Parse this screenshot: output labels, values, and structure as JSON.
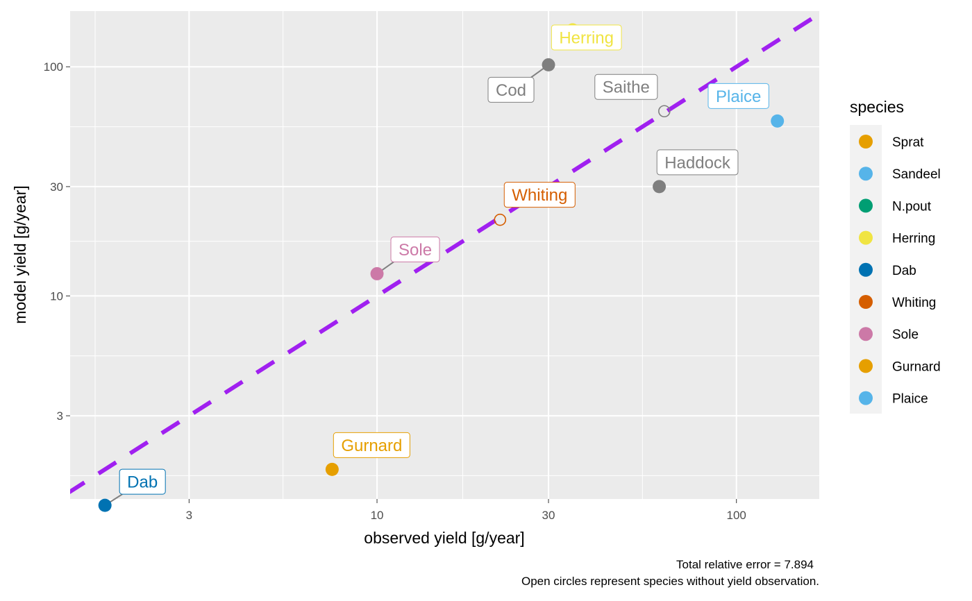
{
  "chart_data": {
    "type": "scatter",
    "xlabel": "observed yield [g/year]",
    "ylabel": "model yield [g/year]",
    "x_scale": "log",
    "y_scale": "log",
    "xlim": [
      1.4,
      170
    ],
    "ylim": [
      1.3,
      175
    ],
    "x_ticks": [
      {
        "value": 3,
        "label": "3"
      },
      {
        "value": 10,
        "label": "10"
      },
      {
        "value": 30,
        "label": "30"
      },
      {
        "value": 100,
        "label": "100"
      }
    ],
    "y_ticks": [
      {
        "value": 3,
        "label": "3"
      },
      {
        "value": 10,
        "label": "10"
      },
      {
        "value": 30,
        "label": "30"
      },
      {
        "value": 100,
        "label": "100"
      }
    ],
    "grid": true,
    "reference_line": {
      "type": "identity",
      "style": "dashed",
      "color": "#a020f0"
    },
    "legend": {
      "title": "species",
      "placement": "right",
      "entries": [
        {
          "name": "Sprat",
          "color": "#E69F00"
        },
        {
          "name": "Sandeel",
          "color": "#56B4E9"
        },
        {
          "name": "N.pout",
          "color": "#009E73"
        },
        {
          "name": "Herring",
          "color": "#F0E442"
        },
        {
          "name": "Dab",
          "color": "#0072B2"
        },
        {
          "name": "Whiting",
          "color": "#D55E00"
        },
        {
          "name": "Sole",
          "color": "#CC79A7"
        },
        {
          "name": "Gurnard",
          "color": "#E69F00"
        },
        {
          "name": "Plaice",
          "color": "#56B4E9"
        }
      ]
    },
    "points": [
      {
        "name": "Herring",
        "x": 35,
        "y": 145,
        "color": "#F0E442",
        "open": false,
        "show_label": true,
        "label_dx": 20,
        "label_dy": 11,
        "leader": false
      },
      {
        "name": "Cod",
        "x": 30,
        "y": 102,
        "color": "#7F7F7F",
        "open": false,
        "show_label": true,
        "label_dx": -54,
        "label_dy": 36,
        "leader": true
      },
      {
        "name": "Saithe",
        "x": 63,
        "y": 64,
        "color": "#7F7F7F",
        "open": true,
        "show_label": true,
        "label_dx": -55,
        "label_dy": -35,
        "leader": false
      },
      {
        "name": "Plaice",
        "x": 130,
        "y": 58,
        "color": "#56B4E9",
        "open": false,
        "show_label": true,
        "label_dx": -56,
        "label_dy": -36,
        "leader": false
      },
      {
        "name": "Haddock",
        "x": 61,
        "y": 30,
        "color": "#7F7F7F",
        "open": false,
        "show_label": true,
        "label_dx": 55,
        "label_dy": -35,
        "leader": false
      },
      {
        "name": "Whiting",
        "x": 22,
        "y": 21.5,
        "color": "#D55E00",
        "open": true,
        "show_label": true,
        "label_dx": 57,
        "label_dy": -36,
        "leader": false
      },
      {
        "name": "Sole",
        "x": 10,
        "y": 12.5,
        "color": "#CC79A7",
        "open": false,
        "show_label": true,
        "label_dx": 55,
        "label_dy": -35,
        "leader": true
      },
      {
        "name": "Gurnard",
        "x": 7.5,
        "y": 1.75,
        "color": "#E69F00",
        "open": false,
        "show_label": true,
        "label_dx": 57,
        "label_dy": -35,
        "leader": false
      },
      {
        "name": "Dab",
        "x": 1.75,
        "y": 1.22,
        "color": "#0072B2",
        "open": false,
        "show_label": true,
        "label_dx": 54,
        "label_dy": -34,
        "leader": true
      }
    ]
  },
  "caption": {
    "line1": "Total relative error = 7.894",
    "line2": "Open circles represent species without yield observation."
  }
}
